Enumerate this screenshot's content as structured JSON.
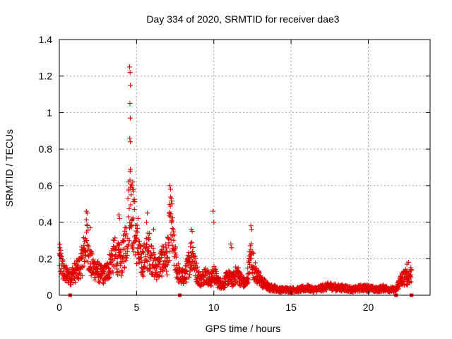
{
  "chart_data": {
    "type": "scatter",
    "title": "Day 334 of 2020, SRMTID for receiver dae3",
    "xlabel": "GPS time / hours",
    "ylabel": "SRMTID / TECUs",
    "xlim": [
      0,
      24
    ],
    "ylim": [
      0,
      1.4
    ],
    "xticks": [
      0,
      5,
      10,
      15,
      20
    ],
    "xtick_labels": [
      "0",
      "5",
      "10",
      "15",
      "20"
    ],
    "yticks": [
      0,
      0.2,
      0.4,
      0.6,
      0.8,
      1,
      1.2,
      1.4
    ],
    "ytick_labels": [
      "0",
      "0.2",
      "0.4",
      "0.6",
      "0.8",
      "1",
      "1.2",
      "1.4"
    ],
    "grid": true,
    "marker": "plus",
    "color": "#e00000",
    "baseline_markers_x": [
      0.7,
      7.8,
      21.8,
      22.8
    ],
    "series": [
      {
        "name": "SRMTID",
        "profile_x": [
          0,
          0.1,
          0.3,
          0.5,
          0.7,
          0.9,
          1.1,
          1.3,
          1.5,
          1.7,
          1.8,
          2.0,
          2.2,
          2.4,
          2.6,
          2.8,
          3.0,
          3.2,
          3.4,
          3.6,
          3.8,
          4.0,
          4.2,
          4.4,
          4.55,
          4.7,
          4.85,
          5.0,
          5.2,
          5.4,
          5.6,
          5.8,
          6.0,
          6.2,
          6.4,
          6.6,
          6.8,
          7.0,
          7.2,
          7.4,
          7.6,
          7.8,
          8.0,
          8.2,
          8.4,
          8.6,
          8.8,
          9.0,
          9.2,
          9.4,
          9.6,
          9.8,
          10.0,
          10.3,
          10.6,
          10.9,
          11.2,
          11.5,
          11.8,
          12.1,
          12.4,
          12.7,
          13.0,
          13.3,
          13.6,
          13.9,
          14.2,
          14.5,
          15.0,
          15.5,
          16.0,
          16.5,
          17.0,
          17.5,
          18.0,
          18.5,
          19.0,
          19.5,
          20.0,
          20.5,
          21.0,
          21.5,
          21.8,
          22.0,
          22.2,
          22.4,
          22.6,
          22.8
        ],
        "profile_y": [
          0.2,
          0.18,
          0.12,
          0.11,
          0.1,
          0.12,
          0.13,
          0.15,
          0.2,
          0.28,
          0.3,
          0.18,
          0.15,
          0.14,
          0.12,
          0.11,
          0.12,
          0.15,
          0.2,
          0.22,
          0.2,
          0.18,
          0.25,
          0.35,
          0.55,
          0.45,
          0.38,
          0.3,
          0.2,
          0.18,
          0.22,
          0.25,
          0.2,
          0.15,
          0.15,
          0.18,
          0.2,
          0.2,
          0.4,
          0.25,
          0.15,
          0.1,
          0.1,
          0.12,
          0.18,
          0.25,
          0.15,
          0.1,
          0.08,
          0.12,
          0.1,
          0.08,
          0.12,
          0.07,
          0.06,
          0.1,
          0.08,
          0.12,
          0.08,
          0.06,
          0.22,
          0.12,
          0.08,
          0.06,
          0.04,
          0.04,
          0.03,
          0.03,
          0.03,
          0.03,
          0.04,
          0.03,
          0.04,
          0.05,
          0.04,
          0.04,
          0.03,
          0.04,
          0.04,
          0.03,
          0.04,
          0.03,
          0.03,
          0.07,
          0.09,
          0.1,
          0.1,
          0.12
        ],
        "spikes": [
          {
            "x": 4.55,
            "y": 1.25
          },
          {
            "x": 4.58,
            "y": 1.22
          },
          {
            "x": 4.6,
            "y": 1.15
          },
          {
            "x": 4.57,
            "y": 1.05
          },
          {
            "x": 4.59,
            "y": 0.97
          },
          {
            "x": 4.56,
            "y": 0.86
          },
          {
            "x": 4.6,
            "y": 0.84
          },
          {
            "x": 4.6,
            "y": 0.69
          },
          {
            "x": 4.75,
            "y": 0.62
          },
          {
            "x": 4.7,
            "y": 0.6
          },
          {
            "x": 4.65,
            "y": 0.55
          },
          {
            "x": 4.8,
            "y": 0.58
          },
          {
            "x": 7.15,
            "y": 0.6
          },
          {
            "x": 7.2,
            "y": 0.58
          },
          {
            "x": 7.25,
            "y": 0.53
          },
          {
            "x": 7.3,
            "y": 0.5
          },
          {
            "x": 1.75,
            "y": 0.46
          },
          {
            "x": 1.8,
            "y": 0.45
          },
          {
            "x": 5.7,
            "y": 0.45
          },
          {
            "x": 5.65,
            "y": 0.4
          },
          {
            "x": 3.85,
            "y": 0.44
          },
          {
            "x": 3.9,
            "y": 0.42
          },
          {
            "x": 8.55,
            "y": 0.36
          },
          {
            "x": 8.6,
            "y": 0.35
          },
          {
            "x": 9.95,
            "y": 0.46
          },
          {
            "x": 10.0,
            "y": 0.4
          },
          {
            "x": 12.4,
            "y": 0.38
          },
          {
            "x": 12.45,
            "y": 0.36
          },
          {
            "x": 11.1,
            "y": 0.28
          },
          {
            "x": 11.15,
            "y": 0.26
          },
          {
            "x": 22.6,
            "y": 0.18
          },
          {
            "x": 22.5,
            "y": 0.17
          },
          {
            "x": 0.05,
            "y": 0.26
          },
          {
            "x": 2.0,
            "y": 0.37
          },
          {
            "x": 5.1,
            "y": 0.42
          },
          {
            "x": 6.1,
            "y": 0.36
          }
        ]
      }
    ]
  }
}
